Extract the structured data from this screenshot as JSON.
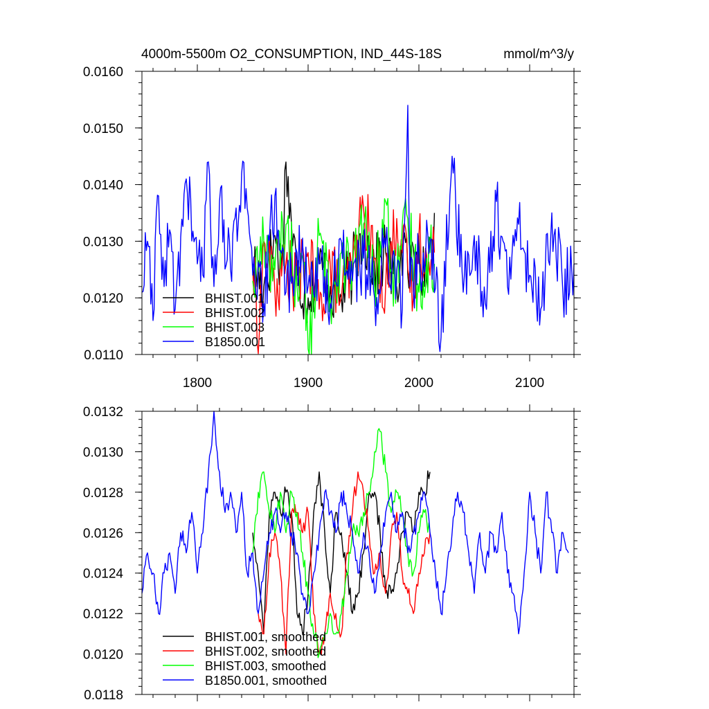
{
  "chart_data": [
    {
      "type": "line",
      "title": "4000m-5500m O2_CONSUMPTION, IND_44S-18S",
      "units": "mmol/m^3/y",
      "xlim": [
        1750,
        2140
      ],
      "ylim": [
        0.011,
        0.016
      ],
      "xticks": [
        "1800",
        "1900",
        "2000",
        "2100"
      ],
      "yticks": [
        "0.0110",
        "0.0120",
        "0.0130",
        "0.0140",
        "0.0150",
        "0.0160"
      ],
      "x_tick_values": [
        1800,
        1900,
        2000,
        2100
      ],
      "y_tick_values": [
        0.011,
        0.012,
        0.013,
        0.014,
        0.015,
        0.016
      ],
      "legend_position": "bottom-left",
      "series": [
        {
          "name": "BHIST.001",
          "color": "#000000",
          "x": [
            1850,
            1860,
            1870,
            1876,
            1880,
            1885,
            1890,
            1900,
            1910,
            1920,
            1930,
            1940,
            1950,
            1960,
            1970,
            1980,
            1986,
            1990,
            2000,
            2005,
            2014
          ],
          "y": [
            0.0126,
            0.0122,
            0.0131,
            0.0125,
            0.0144,
            0.0133,
            0.0124,
            0.012,
            0.0126,
            0.0122,
            0.012,
            0.0125,
            0.0132,
            0.0125,
            0.0128,
            0.0122,
            0.013,
            0.0124,
            0.0131,
            0.0122,
            0.0135
          ]
        },
        {
          "name": "BHIST.002",
          "color": "#ff0000",
          "x": [
            1850,
            1856,
            1860,
            1870,
            1880,
            1890,
            1900,
            1910,
            1920,
            1930,
            1940,
            1950,
            1960,
            1970,
            1980,
            1990,
            1995,
            2000,
            2010,
            2014
          ],
          "y": [
            0.0125,
            0.0114,
            0.013,
            0.0121,
            0.0126,
            0.0122,
            0.0128,
            0.0118,
            0.0126,
            0.012,
            0.0125,
            0.0136,
            0.0127,
            0.0122,
            0.0134,
            0.0125,
            0.012,
            0.0131,
            0.0124,
            0.0128
          ]
        },
        {
          "name": "BHIST.003",
          "color": "#00ff00",
          "x": [
            1850,
            1860,
            1870,
            1880,
            1890,
            1895,
            1901,
            1910,
            1920,
            1930,
            1940,
            1950,
            1960,
            1970,
            1975,
            1980,
            1990,
            2000,
            2010,
            2014
          ],
          "y": [
            0.0123,
            0.013,
            0.0125,
            0.0133,
            0.0122,
            0.0127,
            0.011,
            0.0131,
            0.012,
            0.0128,
            0.0124,
            0.0133,
            0.0122,
            0.0137,
            0.0125,
            0.0123,
            0.0134,
            0.0121,
            0.0128,
            0.0126
          ]
        },
        {
          "name": "B1850.001",
          "color": "#0000ff",
          "x": [
            1750,
            1755,
            1760,
            1765,
            1770,
            1775,
            1780,
            1790,
            1800,
            1805,
            1810,
            1815,
            1820,
            1830,
            1840,
            1850,
            1860,
            1870,
            1880,
            1890,
            1900,
            1910,
            1920,
            1930,
            1940,
            1950,
            1960,
            1970,
            1980,
            1985,
            1990,
            1992,
            2000,
            2010,
            2020,
            2030,
            2040,
            2050,
            2060,
            2070,
            2080,
            2090,
            2100,
            2110,
            2120,
            2130,
            2140
          ],
          "y": [
            0.0121,
            0.013,
            0.0116,
            0.0138,
            0.0122,
            0.0132,
            0.0118,
            0.0141,
            0.0126,
            0.0124,
            0.0144,
            0.0122,
            0.0137,
            0.0125,
            0.0142,
            0.0124,
            0.0119,
            0.0138,
            0.0121,
            0.0128,
            0.0122,
            0.0126,
            0.0119,
            0.013,
            0.0123,
            0.0127,
            0.012,
            0.0129,
            0.0125,
            0.0118,
            0.0154,
            0.0122,
            0.0126,
            0.013,
            0.0113,
            0.0145,
            0.0121,
            0.0131,
            0.0119,
            0.0137,
            0.0122,
            0.0133,
            0.0124,
            0.0118,
            0.0135,
            0.0121,
            0.0126
          ]
        }
      ]
    },
    {
      "type": "line",
      "xlim": [
        1750,
        2140
      ],
      "ylim": [
        0.0118,
        0.0132
      ],
      "yticks": [
        "0.0118",
        "0.0120",
        "0.0122",
        "0.0124",
        "0.0126",
        "0.0128",
        "0.0130",
        "0.0132"
      ],
      "x_tick_values": [
        1800,
        1900,
        2000,
        2100
      ],
      "y_tick_values": [
        0.0118,
        0.012,
        0.0122,
        0.0124,
        0.0126,
        0.0128,
        0.013,
        0.0132
      ],
      "legend_position": "bottom-left",
      "series": [
        {
          "name": "BHIST.001, smoothed",
          "color": "#000000",
          "x": [
            1850,
            1855,
            1860,
            1865,
            1870,
            1875,
            1880,
            1885,
            1890,
            1895,
            1900,
            1905,
            1910,
            1915,
            1920,
            1925,
            1930,
            1935,
            1940,
            1945,
            1950,
            1955,
            1960,
            1965,
            1970,
            1975,
            1980,
            1985,
            1990,
            1995,
            2000,
            2005,
            2010
          ],
          "y": [
            0.0126,
            0.0124,
            0.0121,
            0.0127,
            0.0128,
            0.0127,
            0.0128,
            0.0127,
            0.0122,
            0.0121,
            0.0123,
            0.0127,
            0.0129,
            0.0126,
            0.0123,
            0.0127,
            0.0126,
            0.0124,
            0.0122,
            0.0123,
            0.0125,
            0.0128,
            0.0128,
            0.0126,
            0.0123,
            0.0123,
            0.0124,
            0.0126,
            0.0127,
            0.0126,
            0.0128,
            0.0128,
            0.0129
          ]
        },
        {
          "name": "BHIST.002, smoothed",
          "color": "#ff0000",
          "x": [
            1855,
            1860,
            1865,
            1870,
            1875,
            1880,
            1885,
            1890,
            1895,
            1900,
            1905,
            1910,
            1915,
            1920,
            1925,
            1930,
            1935,
            1940,
            1945,
            1950,
            1955,
            1960,
            1965,
            1970,
            1975,
            1980,
            1985,
            1990,
            1995,
            2000,
            2005,
            2010
          ],
          "y": [
            0.0122,
            0.0121,
            0.0125,
            0.0126,
            0.0124,
            0.012,
            0.0127,
            0.0127,
            0.0126,
            0.0127,
            0.0122,
            0.012,
            0.0121,
            0.0123,
            0.0122,
            0.0121,
            0.0125,
            0.0127,
            0.0129,
            0.0128,
            0.0126,
            0.0124,
            0.0125,
            0.0123,
            0.0126,
            0.0127,
            0.0124,
            0.0123,
            0.0122,
            0.0124,
            0.0125,
            0.0126
          ]
        },
        {
          "name": "BHIST.003, smoothed",
          "color": "#00ff00",
          "x": [
            1850,
            1855,
            1860,
            1865,
            1870,
            1875,
            1880,
            1885,
            1890,
            1895,
            1900,
            1905,
            1910,
            1915,
            1920,
            1925,
            1930,
            1935,
            1940,
            1945,
            1950,
            1955,
            1960,
            1965,
            1970,
            1975,
            1980,
            1985,
            1990,
            1995,
            2000,
            2005,
            2010
          ],
          "y": [
            0.0125,
            0.0128,
            0.0129,
            0.0127,
            0.0126,
            0.0128,
            0.0126,
            0.0128,
            0.0127,
            0.0125,
            0.0123,
            0.0121,
            0.012,
            0.0121,
            0.0122,
            0.0121,
            0.0122,
            0.0124,
            0.0126,
            0.0126,
            0.0127,
            0.0128,
            0.013,
            0.0131,
            0.0129,
            0.0127,
            0.0128,
            0.0127,
            0.0125,
            0.0124,
            0.0126,
            0.0127,
            0.0126
          ]
        },
        {
          "name": "B1850.001, smoothed",
          "color": "#0000ff",
          "x": [
            1750,
            1755,
            1760,
            1765,
            1770,
            1775,
            1780,
            1785,
            1790,
            1795,
            1800,
            1805,
            1810,
            1815,
            1820,
            1825,
            1830,
            1835,
            1840,
            1845,
            1850,
            1855,
            1860,
            1865,
            1870,
            1875,
            1880,
            1885,
            1890,
            1895,
            1900,
            1905,
            1910,
            1915,
            1920,
            1925,
            1930,
            1935,
            1940,
            1945,
            1950,
            1955,
            1960,
            1965,
            1970,
            1975,
            1980,
            1985,
            1990,
            1995,
            2000,
            2005,
            2010,
            2015,
            2020,
            2025,
            2030,
            2035,
            2040,
            2045,
            2050,
            2055,
            2060,
            2065,
            2070,
            2075,
            2080,
            2085,
            2090,
            2095,
            2100,
            2105,
            2110,
            2115,
            2120,
            2125,
            2130,
            2135
          ],
          "y": [
            0.0123,
            0.0125,
            0.0124,
            0.0122,
            0.0124,
            0.0125,
            0.0123,
            0.0126,
            0.0125,
            0.0127,
            0.0124,
            0.0126,
            0.0129,
            0.0132,
            0.0129,
            0.0127,
            0.0128,
            0.0126,
            0.0128,
            0.0124,
            0.0125,
            0.0122,
            0.0124,
            0.0126,
            0.0127,
            0.0126,
            0.0127,
            0.0126,
            0.0125,
            0.0123,
            0.0122,
            0.0124,
            0.0126,
            0.0128,
            0.0127,
            0.0126,
            0.0128,
            0.0127,
            0.0126,
            0.0124,
            0.0126,
            0.0125,
            0.0123,
            0.0125,
            0.0127,
            0.0128,
            0.0126,
            0.0127,
            0.0125,
            0.0126,
            0.0127,
            0.0128,
            0.0126,
            0.0124,
            0.0122,
            0.0124,
            0.0126,
            0.0128,
            0.0127,
            0.0125,
            0.0123,
            0.0126,
            0.0124,
            0.0126,
            0.0125,
            0.0127,
            0.0124,
            0.0123,
            0.0121,
            0.0124,
            0.0128,
            0.0126,
            0.0124,
            0.0128,
            0.0126,
            0.0124,
            0.0126,
            0.0125
          ]
        }
      ]
    }
  ]
}
